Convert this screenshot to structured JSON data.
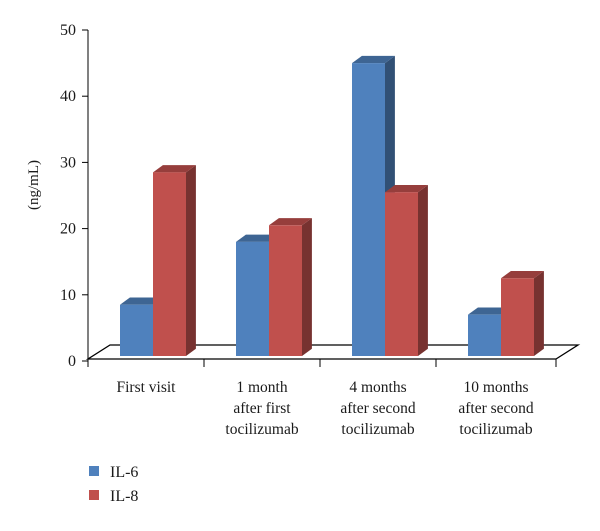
{
  "chart_data": {
    "type": "bar",
    "categories": [
      [
        "First visit"
      ],
      [
        "1 month",
        "after first",
        "tocilizumab"
      ],
      [
        "4 months",
        "after second",
        "tocilizumab"
      ],
      [
        "10 months",
        "after second",
        "tocilizumab"
      ]
    ],
    "series": [
      {
        "name": "IL-6",
        "values": [
          8.5,
          18,
          45,
          7
        ],
        "color": "#4f81bd"
      },
      {
        "name": "IL-8",
        "values": [
          28.5,
          20.5,
          25.5,
          12.5
        ],
        "color": "#c0504d"
      }
    ],
    "ylabel": "(ng/mL)",
    "ylim": [
      0,
      50
    ],
    "yticks": [
      0,
      10,
      20,
      30,
      40,
      50
    ],
    "legend_position": "bottom-left",
    "grid": false,
    "style": "3d"
  }
}
